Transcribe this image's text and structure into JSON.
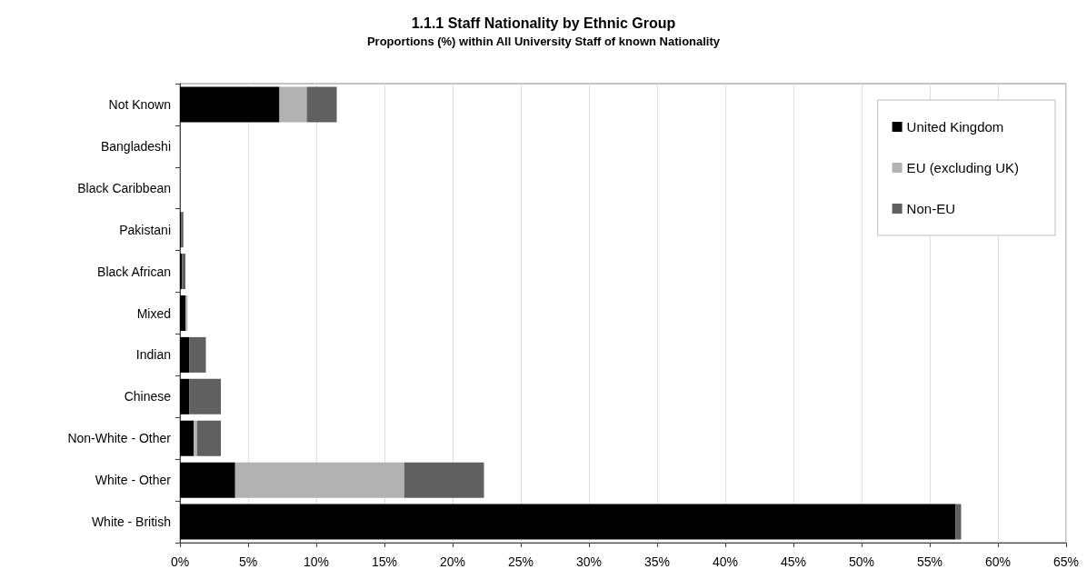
{
  "chart_data": {
    "type": "bar",
    "orientation": "horizontal",
    "stacked": true,
    "title": "1.1.1 Staff Nationality by Ethnic Group",
    "subtitle": "Proportions (%) within All University Staff of known Nationality",
    "categories": [
      "Not Known",
      "Bangladeshi",
      "Black Caribbean",
      "Pakistani",
      "Black African",
      "Mixed",
      "Indian",
      "Chinese",
      "Non-White - Other",
      "White - Other",
      "White - British"
    ],
    "series": [
      {
        "name": "United Kingdom",
        "color": "#000000",
        "values": [
          7.3,
          0,
          0,
          0.1,
          0.15,
          0.4,
          0.7,
          0.7,
          1.0,
          4.05,
          56.9
        ]
      },
      {
        "name": "EU (excluding UK)",
        "color": "#b2b2b2",
        "values": [
          2.0,
          0,
          0,
          0,
          0,
          0.15,
          0,
          0,
          0.25,
          12.4,
          0
        ]
      },
      {
        "name": "Non-EU",
        "color": "#606060",
        "values": [
          2.2,
          0,
          0,
          0.15,
          0.25,
          0,
          1.2,
          2.3,
          1.75,
          5.85,
          0.4
        ]
      }
    ],
    "xlim": [
      0,
      65
    ],
    "xticks": [
      {
        "value": 0,
        "label": "0%"
      },
      {
        "value": 5,
        "label": "5%"
      },
      {
        "value": 10,
        "label": "10%"
      },
      {
        "value": 15,
        "label": "15%"
      },
      {
        "value": 20,
        "label": "20%"
      },
      {
        "value": 25,
        "label": "25%"
      },
      {
        "value": 30,
        "label": "30%"
      },
      {
        "value": 35,
        "label": "35%"
      },
      {
        "value": 40,
        "label": "40%"
      },
      {
        "value": 45,
        "label": "45%"
      },
      {
        "value": 50,
        "label": "50%"
      },
      {
        "value": 55,
        "label": "55%"
      },
      {
        "value": 60,
        "label": "60%"
      },
      {
        "value": 65,
        "label": "65%"
      }
    ],
    "grid": "x",
    "legend": "top right"
  }
}
